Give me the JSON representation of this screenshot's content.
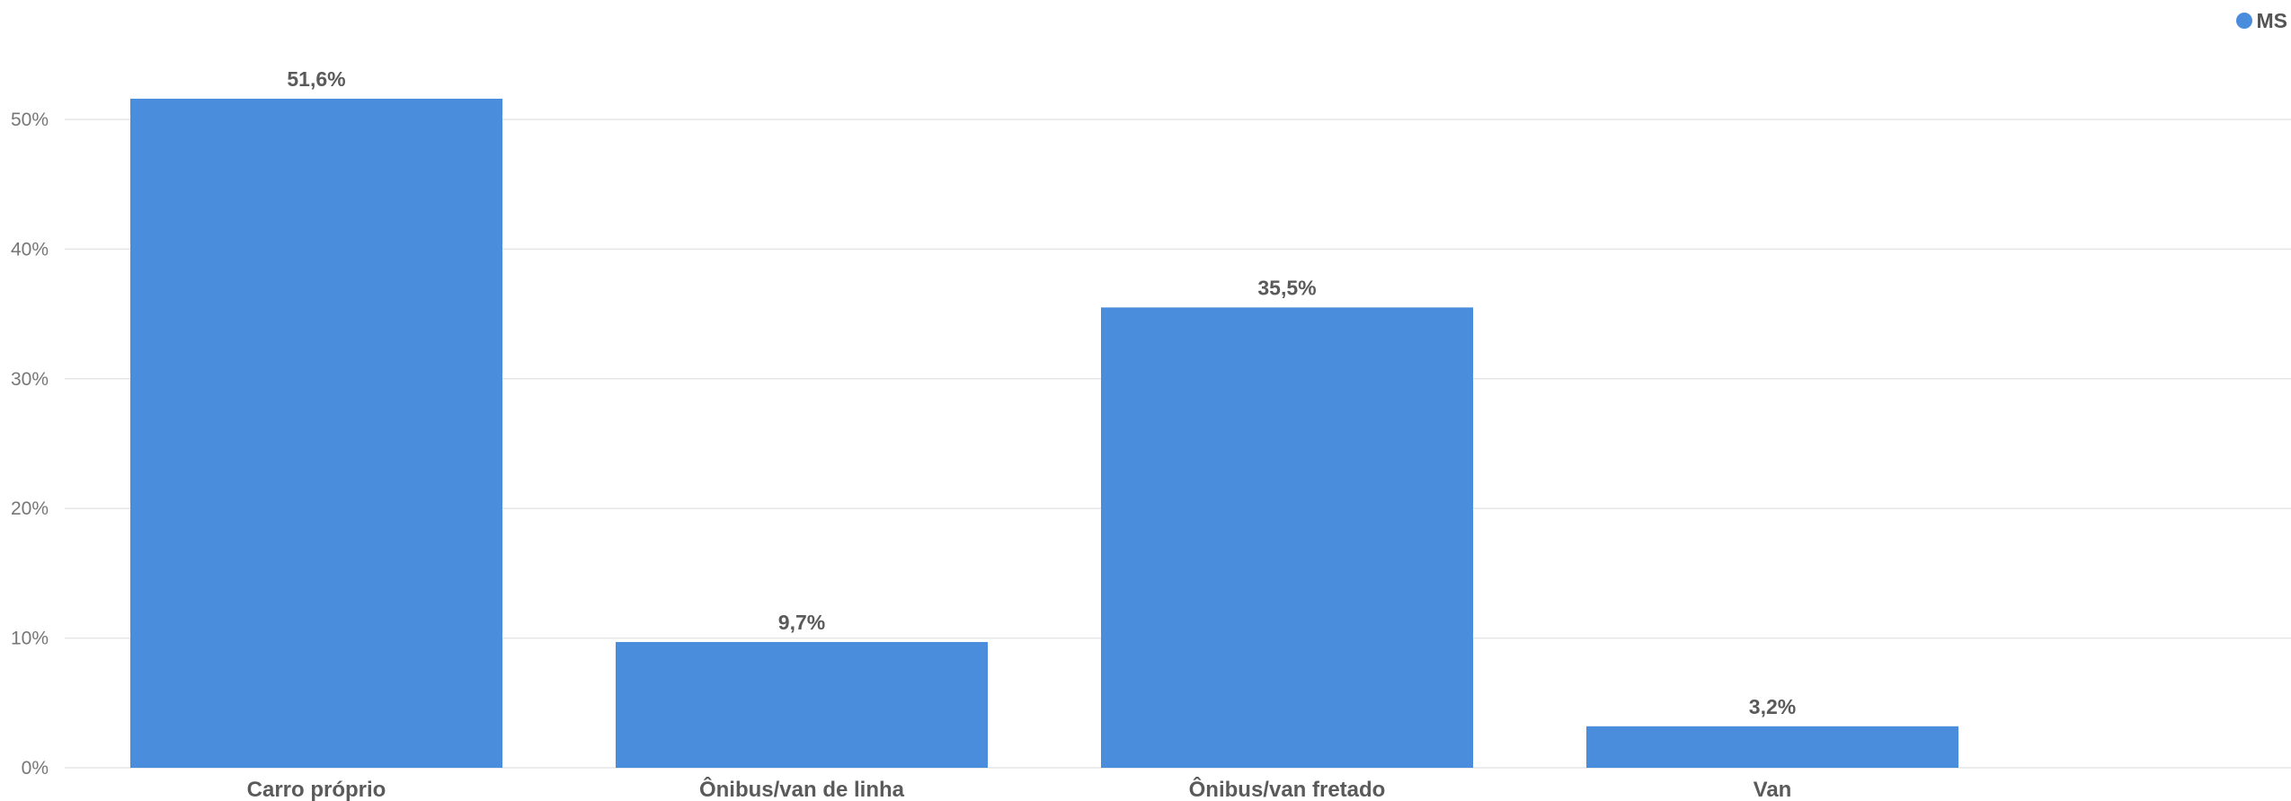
{
  "legend": {
    "label": "MS",
    "color": "#4a8ddc"
  },
  "chart_data": {
    "type": "bar",
    "categories": [
      "Carro próprio",
      "Ônibus/van de linha",
      "Ônibus/van fretado",
      "Van"
    ],
    "series": [
      {
        "name": "MS",
        "values": [
          51.6,
          9.7,
          35.5,
          3.2
        ],
        "data_labels": [
          "51,6%",
          "9,7%",
          "35,5%",
          "3,2%"
        ],
        "color": "#4a8ddc"
      }
    ],
    "y_ticks": [
      0,
      10,
      20,
      30,
      40,
      50
    ],
    "y_tick_labels": [
      "0%",
      "10%",
      "20%",
      "30%",
      "40%",
      "50%"
    ],
    "ylim": [
      0,
      57
    ],
    "grid": true,
    "legend_position": "top-right",
    "title": "",
    "xlabel": "",
    "ylabel": ""
  }
}
